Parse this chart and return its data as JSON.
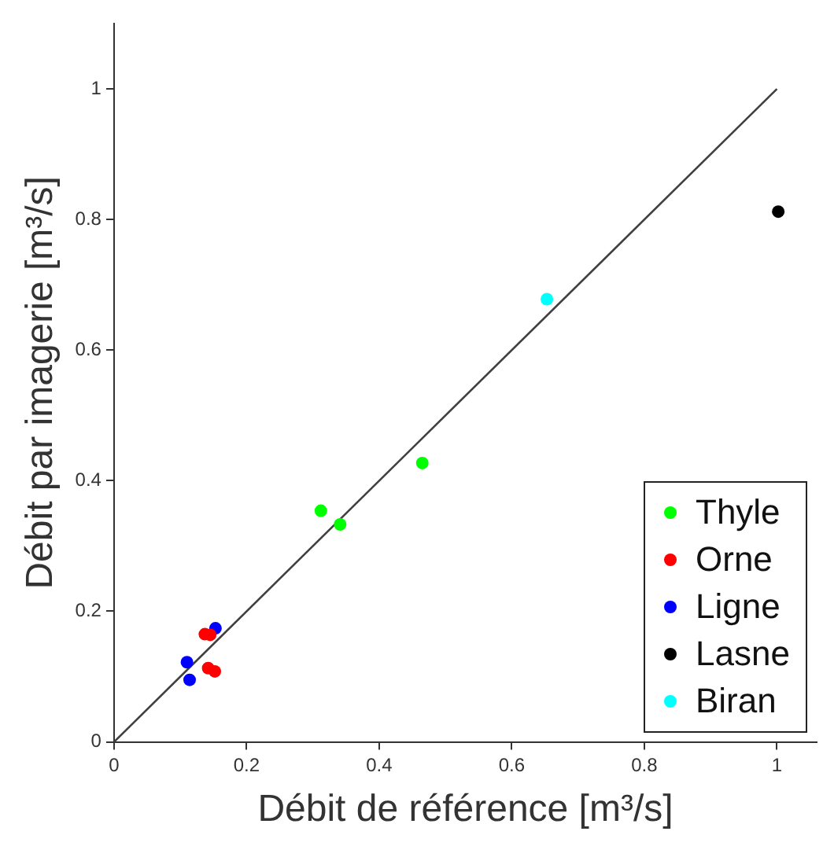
{
  "chart_data": {
    "type": "scatter",
    "xlabel": "Débit de référence [m³/s]",
    "ylabel": "Débit par imagerie [m³/s]",
    "xlim": [
      0,
      1.06
    ],
    "ylim": [
      0,
      1.1
    ],
    "xticks": [
      0,
      0.2,
      0.4,
      0.6,
      0.8,
      1
    ],
    "yticks": [
      0,
      0.2,
      0.4,
      0.6,
      0.8,
      1
    ],
    "grid": false,
    "legend": "bottom right",
    "marker": "circle",
    "series": [
      {
        "name": "Thyle",
        "color": "#00ff00",
        "x": [
          0.312,
          0.341,
          0.465
        ],
        "values": [
          0.354,
          0.333,
          0.427
        ]
      },
      {
        "name": "Orne",
        "color": "#ff0000",
        "x": [
          0.137,
          0.145,
          0.142,
          0.152
        ],
        "values": [
          0.165,
          0.164,
          0.113,
          0.108
        ]
      },
      {
        "name": "Ligne",
        "color": "#0000ff",
        "x": [
          0.153,
          0.11,
          0.114
        ],
        "values": [
          0.174,
          0.122,
          0.095
        ]
      },
      {
        "name": "Lasne",
        "color": "#000000",
        "x": [
          1.002
        ],
        "values": [
          0.812
        ]
      },
      {
        "name": "Biran",
        "color": "#00ffff",
        "x": [
          0.653
        ],
        "values": [
          0.678
        ]
      },
      {
        "type": "line",
        "color": "#404040",
        "x": [
          0,
          1
        ],
        "values": [
          0,
          1
        ],
        "marker": "none",
        "line_style": "solid"
      }
    ]
  }
}
